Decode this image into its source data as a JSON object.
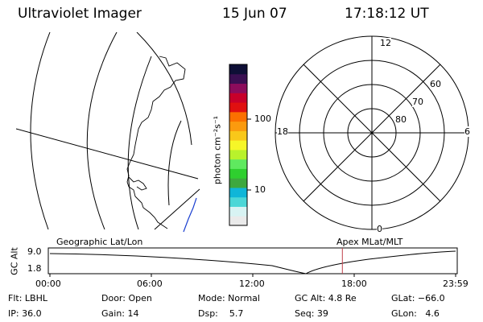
{
  "header": {
    "instrument": "Ultraviolet Imager",
    "date": "15 Jun 07",
    "time": "17:18:12 UT"
  },
  "colorbar": {
    "unit_label": "photon cm⁻²s⁻¹",
    "ticks": [
      {
        "label": "100",
        "value": 100
      },
      {
        "label": "10",
        "value": 10
      }
    ],
    "colors": [
      "#eaeaea",
      "#d8f3f3",
      "#4cd7d7",
      "#10b6d8",
      "#3ea83e",
      "#2fcf2f",
      "#5fe95f",
      "#b9f22c",
      "#f6f628",
      "#f9c81a",
      "#fb9a0e",
      "#fb7000",
      "#e01010",
      "#c8002a",
      "#8c0c5c",
      "#3a0f52",
      "#0e0f36"
    ]
  },
  "polar_plot": {
    "labels": {
      "top": "12",
      "left": "18",
      "right": "6",
      "bottom": "0"
    },
    "latitude_labels": [
      "60",
      "70",
      "80"
    ]
  },
  "timeline": {
    "left_title": "Geographic Lat/Lon",
    "right_title": "Apex MLat/MLT",
    "axis_label": "GC Alt",
    "y_max": "9.0",
    "y_min": "1.8",
    "x_ticks": [
      "00:00",
      "06:00",
      "12:00",
      "18:00",
      "23:59"
    ],
    "current_time_hours": 17.3,
    "marker_color": "#c0404a"
  },
  "info": {
    "flt": "Flt: LBHL",
    "door": "Door: Open",
    "mode": "Mode: Normal",
    "gcalt": "GC Alt: 4.8 Re",
    "glat": "GLat: −66.0",
    "ip": "IP: 36.0",
    "gain": "Gain: 14",
    "dsp": "Dsp:    5.7",
    "seq": "Seq: 39",
    "glon": "GLon:   4.6"
  }
}
